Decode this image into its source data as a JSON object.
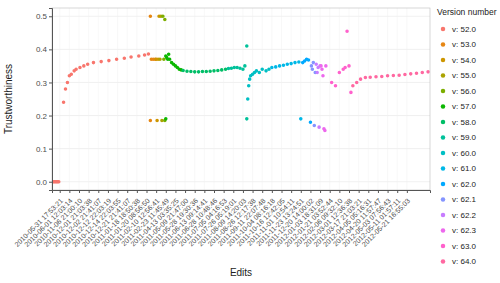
{
  "chart_data": {
    "type": "scatter",
    "x_label": "Edits",
    "y_label": "Trustworthiness",
    "legend_title": "Version number",
    "legend": "right",
    "grid": true,
    "marker": "circle",
    "xlim": [
      0,
      392
    ],
    "ylim": [
      -0.025,
      0.525
    ],
    "yticks": [
      {
        "value": 0,
        "label": "0.0"
      },
      0.1,
      0.2,
      0.3,
      0.4,
      0.5
    ],
    "xticks": [
      {
        "value": 8,
        "label": "2010-05-31 17:53:21"
      },
      {
        "value": 18,
        "label": "2010-06-01 12:03:14"
      },
      {
        "value": 28,
        "label": "2010-11-06 21:00:10"
      },
      {
        "value": 38,
        "label": "2010-12-01 21:03:38"
      },
      {
        "value": 48,
        "label": "2010-12-02 21:41:07"
      },
      {
        "value": 58,
        "label": "2010-12-12 22:03:19"
      },
      {
        "value": 68,
        "label": "2010-12-14 22:03:55"
      },
      {
        "value": 78,
        "label": "2010-12-21 21:41:07"
      },
      {
        "value": 88,
        "label": "2011-01-18 18:50:38"
      },
      {
        "value": 98,
        "label": "2011-01-20 08:56:50"
      },
      {
        "value": 108,
        "label": "2011-02-10 12:56:41"
      },
      {
        "value": 118,
        "label": "2011-02-23 11:45:49"
      },
      {
        "value": 128,
        "label": "2011-04-13 03:35:25"
      },
      {
        "value": 138,
        "label": "2011-05-09 21:47:00"
      },
      {
        "value": 148,
        "label": "2011-05-28 19:30:36"
      },
      {
        "value": 158,
        "label": "2011-06-13 09:14:41"
      },
      {
        "value": 168,
        "label": "2011-06-28 10:48:46"
      },
      {
        "value": 178,
        "label": "2011-07-05 04:16:53"
      },
      {
        "value": 188,
        "label": "2011-07-26 05:19:01"
      },
      {
        "value": 198,
        "label": "2011-08-09 14:20:03"
      },
      {
        "value": 208,
        "label": "2011-08-26 12:17:38"
      },
      {
        "value": 218,
        "label": "2011-09-11 22:07:48"
      },
      {
        "value": 228,
        "label": "2011-10-04 08:16:18"
      },
      {
        "value": 238,
        "label": "2011-10-16 12:42:05"
      },
      {
        "value": 248,
        "label": "2011-11-01 10:54:11"
      },
      {
        "value": 258,
        "label": "2011-11-23 13:24:51"
      },
      {
        "value": 268,
        "label": "2011-12-20 14:00:02"
      },
      {
        "value": 278,
        "label": "2012-01-03 18:31:09"
      },
      {
        "value": 288,
        "label": "2012-01-21 03:52:44"
      },
      {
        "value": 298,
        "label": "2012-02-06 09:32:10"
      },
      {
        "value": 308,
        "label": "2012-03-01 12:36:38"
      },
      {
        "value": 318,
        "label": "2012-03-17 21:03:21"
      },
      {
        "value": 328,
        "label": "2012-04-05 05:16:31"
      },
      {
        "value": 338,
        "label": "2012-04-20 11:57:47"
      },
      {
        "value": 348,
        "label": "2012-05-03 07:56:43"
      },
      {
        "value": 358,
        "label": "2012-05-11 01:57:11"
      },
      {
        "value": 368,
        "label": "2012-05-21 16:55:03"
      }
    ],
    "series": [
      {
        "name": "v: 52.0",
        "color": "#F8766D",
        "x": [
          1,
          2,
          3,
          4,
          5,
          6,
          7,
          12,
          14,
          16,
          18,
          20,
          23,
          25,
          29,
          33,
          37,
          43,
          51,
          59,
          67,
          75,
          82,
          90,
          96,
          100
        ],
        "values": [
          0,
          0,
          0,
          0,
          0,
          0,
          0,
          0.24,
          0.28,
          0.3,
          0.32,
          0.325,
          0.335,
          0.34,
          0.345,
          0.35,
          0.355,
          0.36,
          0.363,
          0.366,
          0.37,
          0.373,
          0.377,
          0.38,
          0.383,
          0.386
        ]
      },
      {
        "name": "v: 53.0",
        "color": "#E68613",
        "x": [
          102,
          102,
          103,
          105,
          107
        ],
        "values": [
          0.5,
          0.185,
          0.37,
          0.37,
          0.37
        ]
      },
      {
        "name": "v: 54.0",
        "color": "#CD9600",
        "x": [
          108,
          109,
          110,
          111
        ],
        "values": [
          0.37,
          0.185,
          0.37,
          0.5
        ]
      },
      {
        "name": "v: 55.0",
        "color": "#ABA300",
        "x": [
          112,
          113,
          114
        ],
        "values": [
          0.37,
          0.5,
          0.185
        ]
      },
      {
        "name": "v: 56.0",
        "color": "#7CAE00",
        "x": [
          115,
          116,
          117,
          117
        ],
        "values": [
          0.5,
          0.37,
          0.185,
          0.49
        ]
      },
      {
        "name": "v: 57.0",
        "color": "#0CB702",
        "x": [
          118,
          118,
          119,
          120,
          121,
          122,
          124,
          126,
          128,
          130,
          132,
          134
        ],
        "values": [
          0.38,
          0.19,
          0.375,
          0.37,
          0.385,
          0.37,
          0.36,
          0.355,
          0.35,
          0.345,
          0.34,
          0.338
        ]
      },
      {
        "name": "v: 58.0",
        "color": "#00BE67",
        "x": [
          136,
          140,
          144,
          148,
          152,
          156,
          160,
          164,
          168,
          172,
          176,
          180
        ],
        "values": [
          0.336,
          0.334,
          0.333,
          0.332,
          0.332,
          0.333,
          0.333,
          0.334,
          0.335,
          0.336,
          0.338,
          0.34
        ]
      },
      {
        "name": "v: 59.0",
        "color": "#00C19A",
        "x": [
          183,
          186,
          189,
          192,
          195,
          198,
          200,
          202,
          202
        ],
        "values": [
          0.342,
          0.343,
          0.345,
          0.345,
          0.343,
          0.34,
          0.35,
          0.41,
          0.19
        ]
      },
      {
        "name": "v: 60.0",
        "color": "#00BFC4",
        "x": [
          203,
          204,
          205,
          206,
          208,
          210,
          212,
          215,
          218,
          222,
          225
        ],
        "values": [
          0.25,
          0.29,
          0.31,
          0.32,
          0.325,
          0.33,
          0.335,
          0.33,
          0.34,
          0.335,
          0.34
        ]
      },
      {
        "name": "v: 61.0",
        "color": "#00B8E7",
        "x": [
          228,
          232,
          236,
          240,
          244,
          248,
          252,
          256,
          258
        ],
        "values": [
          0.345,
          0.347,
          0.35,
          0.352,
          0.355,
          0.357,
          0.36,
          0.362,
          0.19
        ]
      },
      {
        "name": "v: 62.0",
        "color": "#00A9FF",
        "x": [
          260,
          262,
          264,
          266,
          268
        ],
        "values": [
          0.36,
          0.365,
          0.37,
          0.368,
          0.18
        ]
      },
      {
        "name": "v: 62.1",
        "color": "#8494FF",
        "x": [
          269,
          270,
          271,
          272,
          273
        ],
        "values": [
          0.35,
          0.34,
          0.36,
          0.17,
          0.33
        ]
      },
      {
        "name": "v: 62.2",
        "color": "#C77CFF",
        "x": [
          274,
          275,
          276,
          277,
          278
        ],
        "values": [
          0.355,
          0.33,
          0.345,
          0.165,
          0.35
        ]
      },
      {
        "name": "v: 62.3",
        "color": "#ED68ED",
        "x": [
          279,
          280,
          281,
          282,
          283,
          284
        ],
        "values": [
          0.35,
          0.34,
          0.32,
          0.16,
          0.155,
          0.35
        ]
      },
      {
        "name": "v: 63.0",
        "color": "#FF61CC",
        "x": [
          290,
          294,
          298,
          302,
          304,
          306,
          308,
          310
        ],
        "values": [
          0.3,
          0.29,
          0.33,
          0.34,
          0.345,
          0.455,
          0.35,
          0.27
        ]
      },
      {
        "name": "v: 64.0",
        "color": "#FF68A1",
        "x": [
          312,
          316,
          320,
          325,
          330,
          336,
          342,
          348,
          354,
          360,
          366,
          372,
          378,
          384,
          390
        ],
        "values": [
          0.29,
          0.3,
          0.31,
          0.315,
          0.316,
          0.317,
          0.318,
          0.32,
          0.321,
          0.322,
          0.324,
          0.326,
          0.328,
          0.33,
          0.332
        ]
      }
    ]
  }
}
